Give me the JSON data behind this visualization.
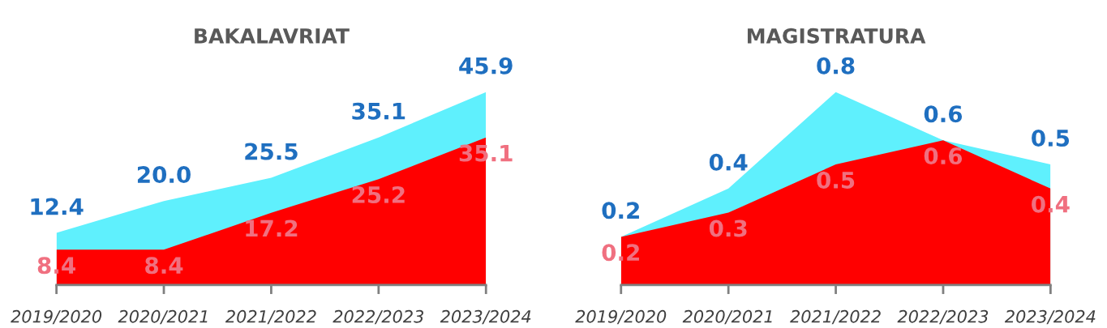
{
  "chart_data": [
    {
      "type": "area",
      "title": "BAKALAVRIAT",
      "categories": [
        "2019/2020",
        "2020/2021",
        "2021/2022",
        "2022/2023",
        "2023/2024"
      ],
      "series": [
        {
          "color": "#5ff0fd",
          "values": [
            12.4,
            20.0,
            25.5,
            35.1,
            45.9
          ],
          "value_labels": [
            "12.4",
            "20.0",
            "25.5",
            "35.1",
            "45.9"
          ]
        },
        {
          "color": "#ff0000",
          "values": [
            8.4,
            8.4,
            17.2,
            25.2,
            35.1
          ],
          "value_labels": [
            "8.4",
            "8.4",
            "17.2",
            "25.2",
            "35.1"
          ]
        }
      ]
    },
    {
      "type": "area",
      "title": "MAGISTRATURA",
      "categories": [
        "2019/2020",
        "2020/2021",
        "2021/2022",
        "2022/2023",
        "2023/2024"
      ],
      "series": [
        {
          "color": "#5ff0fd",
          "values": [
            0.2,
            0.4,
            0.8,
            0.6,
            0.5
          ],
          "value_labels": [
            "0.2",
            "0.4",
            "0.8",
            "0.6",
            "0.5"
          ]
        },
        {
          "color": "#ff0000",
          "values": [
            0.2,
            0.3,
            0.5,
            0.6,
            0.4
          ],
          "value_labels": [
            "0.2",
            "0.3",
            "0.5",
            "0.6",
            "0.4"
          ]
        }
      ]
    }
  ]
}
